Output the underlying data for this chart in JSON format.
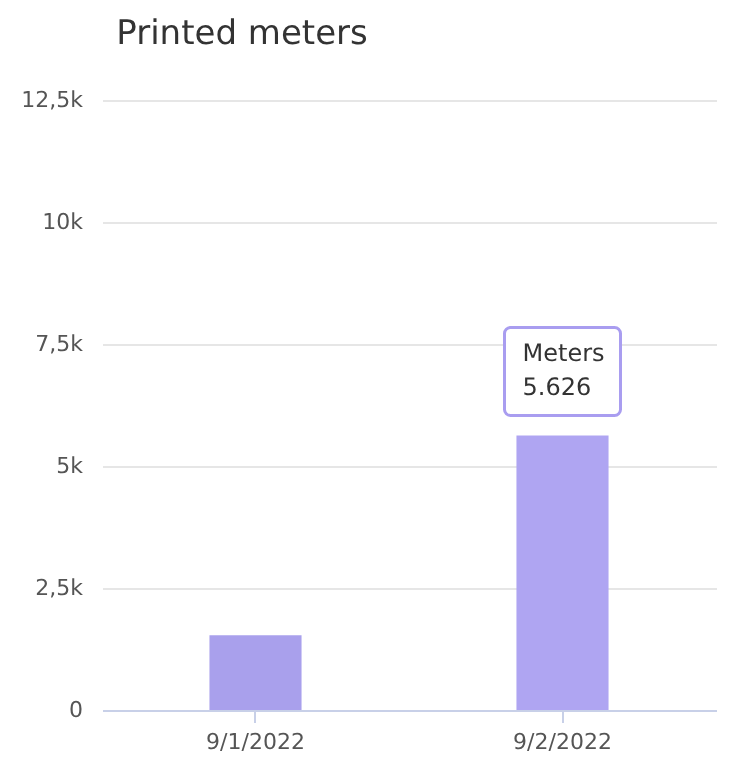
{
  "chart_data": {
    "type": "bar",
    "title": "Printed meters",
    "categories": [
      "9/1/2022",
      "9/2/2022"
    ],
    "values": [
      1530,
      5626
    ],
    "colors": [
      "#a9a0ec",
      "#afa5f2"
    ],
    "ylim": [
      0,
      12500
    ],
    "yticks": [
      {
        "value": 0,
        "label": "0"
      },
      {
        "value": 2500,
        "label": "2,5k"
      },
      {
        "value": 5000,
        "label": "5k"
      },
      {
        "value": 7500,
        "label": "7,5k"
      },
      {
        "value": 10000,
        "label": "10k"
      },
      {
        "value": 12500,
        "label": "12,5k"
      }
    ],
    "grid": "y",
    "annotations": [
      {
        "text": "Meters\n5.626",
        "x": "9/2/2022",
        "y": 5626
      }
    ]
  }
}
